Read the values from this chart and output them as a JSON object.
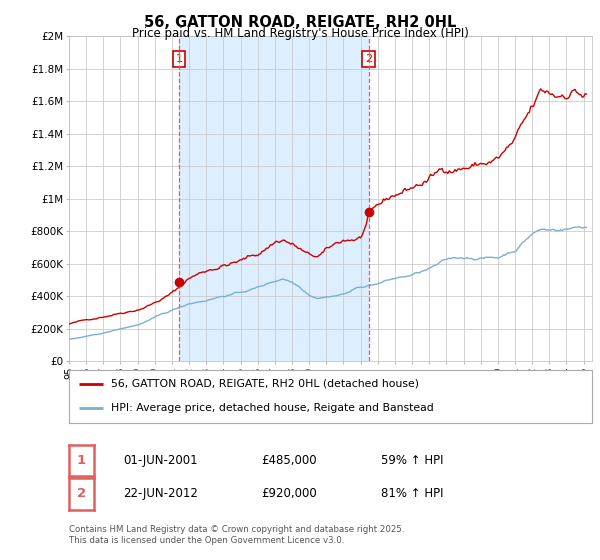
{
  "title": "56, GATTON ROAD, REIGATE, RH2 0HL",
  "subtitle": "Price paid vs. HM Land Registry's House Price Index (HPI)",
  "legend_line1": "56, GATTON ROAD, REIGATE, RH2 0HL (detached house)",
  "legend_line2": "HPI: Average price, detached house, Reigate and Banstead",
  "purchase1_date": "01-JUN-2001",
  "purchase1_price": "£485,000",
  "purchase1_hpi": "59% ↑ HPI",
  "purchase2_date": "22-JUN-2012",
  "purchase2_price": "£920,000",
  "purchase2_hpi": "81% ↑ HPI",
  "footer": "Contains HM Land Registry data © Crown copyright and database right 2025.\nThis data is licensed under the Open Government Licence v3.0.",
  "red_line_color": "#cc0000",
  "blue_line_color": "#7ab0d4",
  "vline_color": "#e06060",
  "shade_color": "#ddeeff",
  "background_color": "#ffffff",
  "plot_bg_color": "#ffffff",
  "grid_color": "#cccccc",
  "ylim": [
    0,
    2000000
  ],
  "xlim_start": 1995.0,
  "xlim_end": 2025.5,
  "vline1_x": 2001.42,
  "vline2_x": 2012.47
}
